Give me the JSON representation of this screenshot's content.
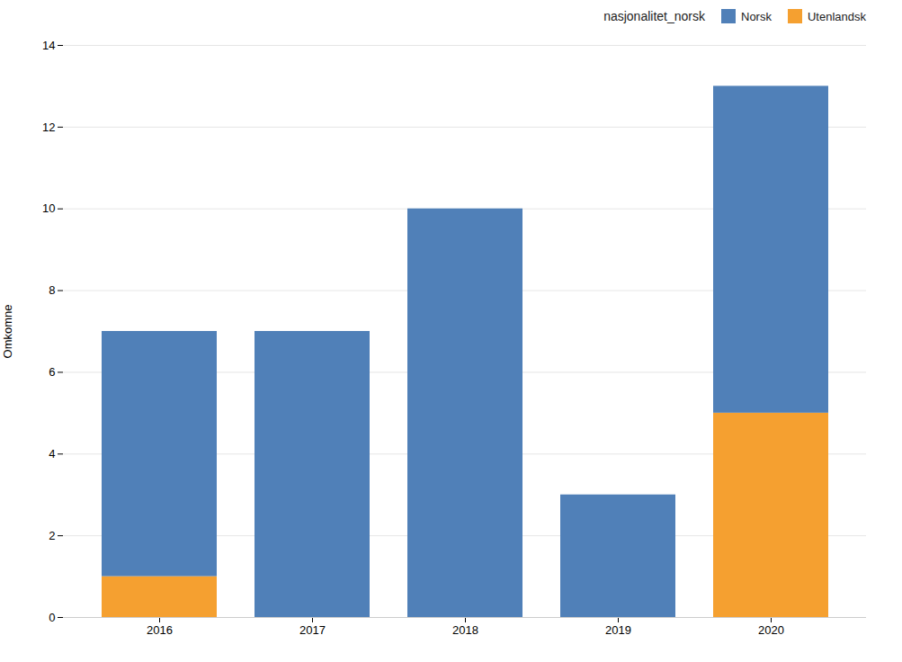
{
  "chart_data": {
    "type": "bar",
    "stacked": true,
    "categories": [
      "2016",
      "2017",
      "2018",
      "2019",
      "2020"
    ],
    "series": [
      {
        "name": "Utenlandsk",
        "color": "#f5a030",
        "values": [
          1,
          0,
          0,
          0,
          5
        ]
      },
      {
        "name": "Norsk",
        "color": "#5080b8",
        "values": [
          6,
          7,
          10,
          3,
          8
        ]
      }
    ],
    "ylabel": "Omkomne",
    "legend_title": "nasjonalitet_norsk",
    "legend": "upper right",
    "ylim": [
      0,
      14
    ],
    "yticks": [
      0,
      2,
      4,
      6,
      8,
      10,
      12,
      14
    ],
    "grid": true
  }
}
